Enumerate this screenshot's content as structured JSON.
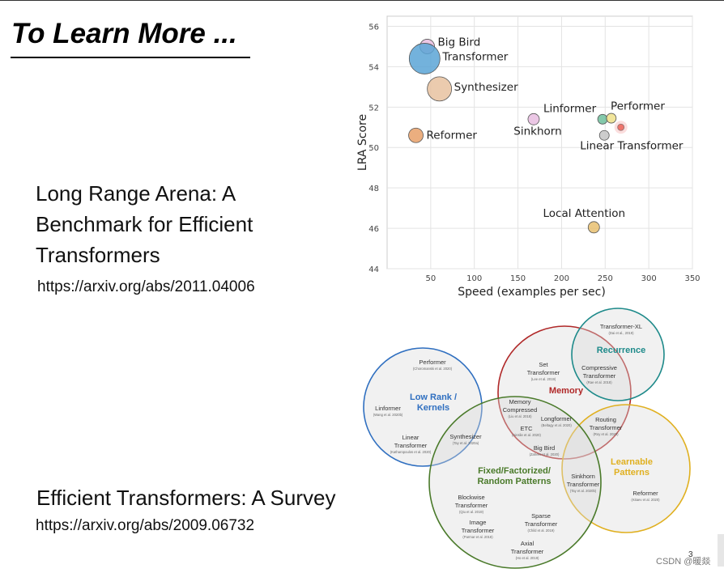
{
  "slide": {
    "title": "To Learn More ...",
    "paper1_title": "Long Range Arena: A Benchmark for Efficient Transformers",
    "paper1_link": "https://arxiv.org/abs/2011.04006",
    "paper2_title": "Efficient Transformers: A Survey",
    "paper2_link": "https://arxiv.org/abs/2009.06732",
    "page_number": "3",
    "watermark": "CSDN @暖燚"
  },
  "chart_data": [
    {
      "type": "scatter",
      "title": "",
      "xlabel": "Speed (examples per sec)",
      "ylabel": "LRA Score",
      "xlim": [
        0,
        350
      ],
      "ylim": [
        44,
        56.5
      ],
      "xticks": [
        50,
        100,
        150,
        200,
        250,
        300,
        350
      ],
      "yticks": [
        44,
        46,
        48,
        50,
        52,
        54,
        56
      ],
      "grid": true,
      "points": [
        {
          "name": "Big Bird",
          "x": 46,
          "y": 55.0,
          "size": 9,
          "color": "#e8bde0"
        },
        {
          "name": "Transformer",
          "x": 43,
          "y": 54.4,
          "size": 19,
          "color": "#5aa5d6"
        },
        {
          "name": "Synthesizer",
          "x": 60,
          "y": 52.9,
          "size": 15,
          "color": "#e8c2a0"
        },
        {
          "name": "Reformer",
          "x": 33,
          "y": 50.6,
          "size": 9,
          "color": "#e8a068"
        },
        {
          "name": "Linformer",
          "x": 168,
          "y": 51.4,
          "size": 7,
          "color": "#e8bde0"
        },
        {
          "name": "Sinkhorn",
          "x": 168,
          "y": 51.4,
          "size": 0,
          "color": "#e8bde0"
        },
        {
          "name": "Performer",
          "x": 247,
          "y": 51.4,
          "size": 6,
          "color": "#6fbf9c"
        },
        {
          "name": "",
          "x": 257,
          "y": 51.45,
          "size": 6,
          "color": "#efe08a"
        },
        {
          "name": "",
          "x": 268,
          "y": 51.0,
          "size": 4,
          "color": "#e84030"
        },
        {
          "name": "Linear Transformer",
          "x": 249,
          "y": 50.6,
          "size": 6,
          "color": "#c4c4c4"
        },
        {
          "name": "Local Attention",
          "x": 237,
          "y": 46.05,
          "size": 7,
          "color": "#e8c070"
        }
      ]
    },
    {
      "type": "diagram",
      "title": "",
      "sets": [
        {
          "name": "Low Rank / Kernels",
          "color": "#2f6fc0"
        },
        {
          "name": "Memory",
          "color": "#b02828"
        },
        {
          "name": "Recurrence",
          "color": "#1e8a8a"
        },
        {
          "name": "Learnable Patterns",
          "color": "#e0b020"
        },
        {
          "name": "Fixed/Factorized/ Random Patterns",
          "color": "#4a7a2a"
        }
      ],
      "items": [
        {
          "name": "Performer",
          "cite": "(Choromanski et al. 2020)"
        },
        {
          "name": "Linformer",
          "cite": "(Wang et al. 2020b)"
        },
        {
          "name": "Linear Transformer",
          "cite": "(Katharopoulos et al. 2020)"
        },
        {
          "name": "Synthesizer",
          "cite": "(Tay et al. 2020a)"
        },
        {
          "name": "Set Transformer",
          "cite": "(Lee et al. 2019)"
        },
        {
          "name": "Memory Compressed",
          "cite": "(Liu et al. 2018)"
        },
        {
          "name": "ETC",
          "cite": "(Ainslie et al. 2020)"
        },
        {
          "name": "Longformer",
          "cite": "(Beltagy et al. 2020)"
        },
        {
          "name": "Big Bird",
          "cite": "(Zaheer et al. 2020)"
        },
        {
          "name": "Transformer-XL",
          "cite": "(Dai et al., 2019)"
        },
        {
          "name": "Compressive Transformer",
          "cite": "(Rae et al. 2018)"
        },
        {
          "name": "Routing Transformer",
          "cite": "(Roy et al. 2020)"
        },
        {
          "name": "Sinkhorn Transformer",
          "cite": "(Tay et al. 2020b)"
        },
        {
          "name": "Reformer",
          "cite": "(Kitaev et al. 2020)"
        },
        {
          "name": "Blockwise Transformer",
          "cite": "(Qiu et al. 2019)"
        },
        {
          "name": "Sparse Transformer",
          "cite": "(Child et al. 2019)"
        },
        {
          "name": "Image Transformer",
          "cite": "(Parmar et al. 2018)"
        },
        {
          "name": "Axial Transformer",
          "cite": "(Ho et al. 2019)"
        }
      ]
    }
  ]
}
